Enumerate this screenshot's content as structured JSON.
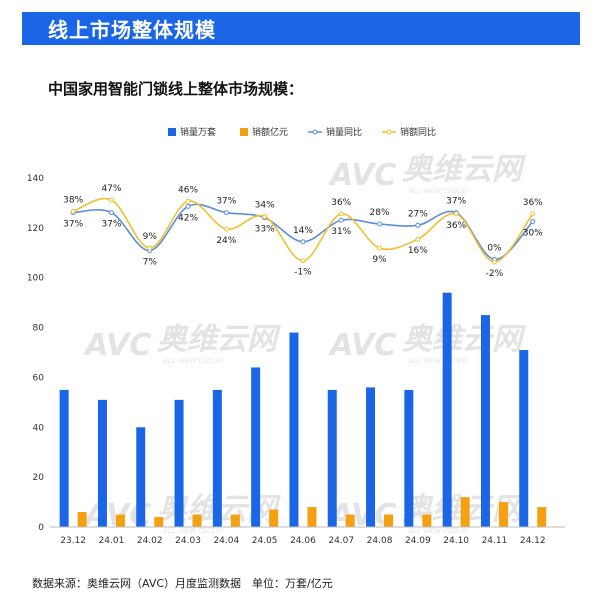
{
  "header": {
    "banner_title": "线上市场整体规模",
    "subtitle": "中国家用智能门锁线上整体市场规模：",
    "footnote": "数据来源：奥维云网（AVC）月度监测数据　单位：万套/亿元"
  },
  "watermark": {
    "brand": "AVC",
    "cn": "奥维云网",
    "en": "ALL VIEW CLOUD"
  },
  "colors": {
    "volume": "#1a66e6",
    "revenue": "#f5a011",
    "volume_yoy": "#5b8fd9",
    "revenue_yoy": "#f0c030",
    "banner": "#1a66e6"
  },
  "chart_data": {
    "type": "bar",
    "categories": [
      "23.12",
      "24.01",
      "24.02",
      "24.03",
      "24.04",
      "24.05",
      "24.06",
      "24.07",
      "24.08",
      "24.09",
      "24.10",
      "24.11",
      "24.12"
    ],
    "ylim": [
      0,
      140
    ],
    "yticks": [
      0,
      20,
      40,
      60,
      80,
      100,
      120,
      140
    ],
    "grid": false,
    "legend_position": "top-right",
    "series": [
      {
        "name": "销量万套",
        "type": "bar",
        "values": [
          55,
          51,
          40,
          51,
          55,
          64,
          78,
          55,
          56,
          55,
          94,
          85,
          71
        ]
      },
      {
        "name": "销额亿元",
        "type": "bar",
        "values": [
          6,
          5,
          4,
          5,
          5,
          7,
          8,
          5,
          5,
          5,
          12,
          10,
          8
        ]
      },
      {
        "name": "销量同比",
        "type": "line",
        "values": [
          37,
          37,
          7,
          42,
          37,
          33,
          14,
          31,
          28,
          27,
          37,
          0,
          30
        ],
        "labels": [
          "37%",
          "37%",
          "7%",
          "42%",
          "37%",
          "33%",
          "14%",
          "31%",
          "28%",
          "27%",
          "37%",
          "0%",
          "30%"
        ]
      },
      {
        "name": "销额同比",
        "type": "line",
        "values": [
          38,
          47,
          9,
          46,
          24,
          34,
          -1,
          36,
          9,
          16,
          36,
          -2,
          36
        ],
        "labels": [
          "38%",
          "47%",
          "9%",
          "46%",
          "24%",
          "34%",
          "-1%",
          "36%",
          "9%",
          "16%",
          "36%",
          "-2%",
          "36%"
        ]
      }
    ]
  }
}
